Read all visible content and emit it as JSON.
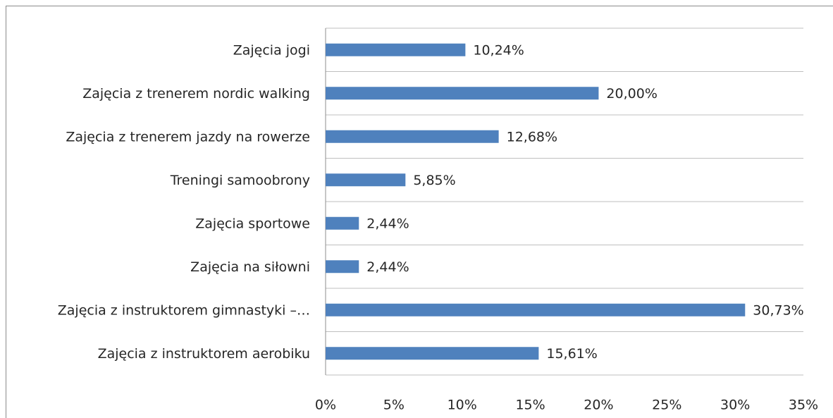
{
  "chart_data": {
    "type": "barh",
    "categories": [
      "Zajęcia jogi",
      "Zajęcia z trenerem nordic walking",
      "Zajęcia z trenerem jazdy na rowerze",
      "Treningi samoobrony",
      "Zajęcia sportowe",
      "Zajęcia na siłowni",
      "Zajęcia z instruktorem gimnastyki –…",
      "Zajęcia z instruktorem aerobiku"
    ],
    "values": [
      10.24,
      20.0,
      12.68,
      5.85,
      2.44,
      2.44,
      30.73,
      15.61
    ],
    "value_labels": [
      "10,24%",
      "20,00%",
      "12,68%",
      "5,85%",
      "2,44%",
      "2,44%",
      "30,73%",
      "15,61%"
    ],
    "color": "#4f81bd",
    "xlim": [
      0,
      35
    ],
    "xticks": [
      {
        "value": 0,
        "label": "0%"
      },
      {
        "value": 5,
        "label": "5%"
      },
      {
        "value": 10,
        "label": "10%"
      },
      {
        "value": 15,
        "label": "15%"
      },
      {
        "value": 20,
        "label": "20%"
      },
      {
        "value": 25,
        "label": "25%"
      },
      {
        "value": 30,
        "label": "30%"
      },
      {
        "value": 35,
        "label": "35%"
      }
    ],
    "grid": true
  }
}
